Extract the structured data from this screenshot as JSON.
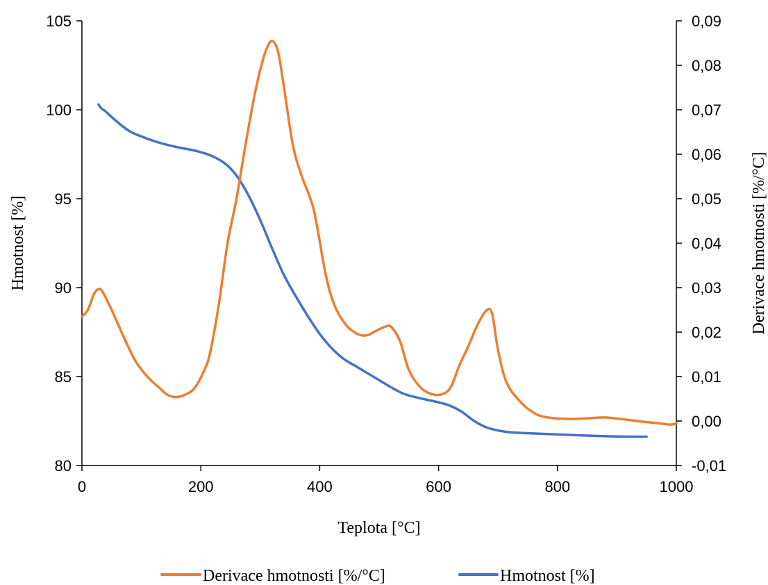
{
  "chart_data": {
    "type": "line",
    "xlabel": "Teplota [°C]",
    "ylabel_left": "Hmotnost [%]",
    "ylabel_right": "Derivace hmotnosti [%/°C]",
    "xlim": [
      0,
      1000
    ],
    "ylim_left": [
      80,
      105
    ],
    "ylim_right": [
      -0.01,
      0.09
    ],
    "x_ticks": [
      "0",
      "200",
      "400",
      "600",
      "800",
      "1000"
    ],
    "y_left_ticks": [
      "80",
      "85",
      "90",
      "95",
      "100",
      "105"
    ],
    "y_right_ticks": [
      "-0,01",
      "0,00",
      "0,01",
      "0,02",
      "0,03",
      "0,04",
      "0,05",
      "0,06",
      "0,07",
      "0,08",
      "0,09"
    ],
    "grid": false,
    "legend_position": "bottom",
    "series": [
      {
        "name": "Derivace hmotnosti [%/°C]",
        "axis": "right",
        "color": "#ED7D31",
        "points": [
          [
            0,
            0.0235
          ],
          [
            10,
            0.025
          ],
          [
            20,
            0.0285
          ],
          [
            28,
            0.0297
          ],
          [
            35,
            0.029
          ],
          [
            50,
            0.025
          ],
          [
            70,
            0.019
          ],
          [
            90,
            0.0135
          ],
          [
            110,
            0.01
          ],
          [
            130,
            0.0075
          ],
          [
            145,
            0.0058
          ],
          [
            160,
            0.0054
          ],
          [
            175,
            0.006
          ],
          [
            190,
            0.0075
          ],
          [
            205,
            0.0112
          ],
          [
            215,
            0.015
          ],
          [
            230,
            0.026
          ],
          [
            245,
            0.04
          ],
          [
            260,
            0.05
          ],
          [
            275,
            0.062
          ],
          [
            290,
            0.073
          ],
          [
            300,
            0.079
          ],
          [
            310,
            0.0835
          ],
          [
            320,
            0.0855
          ],
          [
            330,
            0.083
          ],
          [
            340,
            0.075
          ],
          [
            355,
            0.062
          ],
          [
            370,
            0.055
          ],
          [
            390,
            0.0475
          ],
          [
            410,
            0.033
          ],
          [
            425,
            0.026
          ],
          [
            445,
            0.0215
          ],
          [
            465,
            0.0195
          ],
          [
            480,
            0.0193
          ],
          [
            495,
            0.0203
          ],
          [
            510,
            0.0212
          ],
          [
            520,
            0.0212
          ],
          [
            535,
            0.018
          ],
          [
            550,
            0.0115
          ],
          [
            570,
            0.0075
          ],
          [
            590,
            0.006
          ],
          [
            605,
            0.006
          ],
          [
            620,
            0.0075
          ],
          [
            635,
            0.0125
          ],
          [
            650,
            0.0168
          ],
          [
            665,
            0.0215
          ],
          [
            680,
            0.0248
          ],
          [
            690,
            0.0242
          ],
          [
            700,
            0.016
          ],
          [
            715,
            0.0085
          ],
          [
            740,
            0.004
          ],
          [
            765,
            0.0015
          ],
          [
            790,
            0.0007
          ],
          [
            820,
            0.0005
          ],
          [
            850,
            0.0006
          ],
          [
            880,
            0.0008
          ],
          [
            910,
            0.0004
          ],
          [
            940,
            -0.0001
          ],
          [
            970,
            -0.0005
          ],
          [
            990,
            -0.0008
          ],
          [
            1000,
            -0.0005
          ]
        ]
      },
      {
        "name": "Hmotnost [%]",
        "axis": "left",
        "color": "#4472C4",
        "points": [
          [
            28,
            100.3
          ],
          [
            32,
            100.1
          ],
          [
            40,
            99.9
          ],
          [
            60,
            99.3
          ],
          [
            80,
            98.8
          ],
          [
            100,
            98.5
          ],
          [
            130,
            98.15
          ],
          [
            160,
            97.9
          ],
          [
            190,
            97.7
          ],
          [
            215,
            97.45
          ],
          [
            240,
            97.0
          ],
          [
            260,
            96.3
          ],
          [
            280,
            95.2
          ],
          [
            300,
            93.8
          ],
          [
            320,
            92.2
          ],
          [
            340,
            90.7
          ],
          [
            360,
            89.5
          ],
          [
            380,
            88.4
          ],
          [
            400,
            87.4
          ],
          [
            420,
            86.6
          ],
          [
            440,
            86.0
          ],
          [
            460,
            85.6
          ],
          [
            480,
            85.2
          ],
          [
            500,
            84.8
          ],
          [
            520,
            84.4
          ],
          [
            540,
            84.05
          ],
          [
            560,
            83.85
          ],
          [
            580,
            83.7
          ],
          [
            600,
            83.55
          ],
          [
            620,
            83.35
          ],
          [
            640,
            83.0
          ],
          [
            660,
            82.5
          ],
          [
            680,
            82.15
          ],
          [
            700,
            81.97
          ],
          [
            720,
            81.87
          ],
          [
            760,
            81.8
          ],
          [
            800,
            81.75
          ],
          [
            850,
            81.68
          ],
          [
            900,
            81.63
          ],
          [
            950,
            81.62
          ]
        ]
      }
    ]
  }
}
